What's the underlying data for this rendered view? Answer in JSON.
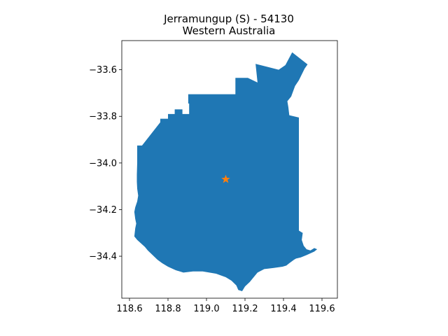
{
  "title": {
    "line1": "Jerramungup (S) - 54130",
    "line2": "Western Australia"
  },
  "colors": {
    "region_fill": "#1f77b4",
    "marker": "#ff7f0e"
  },
  "chart_data": {
    "type": "map",
    "xlim": [
      118.56,
      119.68
    ],
    "ylim": [
      -34.58,
      -33.475
    ],
    "x_ticks": [
      "118.6",
      "118.8",
      "119.0",
      "119.2",
      "119.4",
      "119.6"
    ],
    "x_tick_values": [
      118.6,
      118.8,
      119.0,
      119.2,
      119.4,
      119.6
    ],
    "y_ticks": [
      "−33.6",
      "−33.8",
      "−34.0",
      "−34.2",
      "−34.4"
    ],
    "y_tick_values": [
      -33.6,
      -33.8,
      -34.0,
      -34.2,
      -34.4
    ],
    "centroid_marker": {
      "lon": 119.1,
      "lat": -34.07,
      "symbol": "star"
    },
    "region_outline": [
      [
        118.64,
        -33.925
      ],
      [
        118.665,
        -33.925
      ],
      [
        118.76,
        -33.825
      ],
      [
        118.76,
        -33.81
      ],
      [
        118.8,
        -33.81
      ],
      [
        118.8,
        -33.79
      ],
      [
        118.835,
        -33.79
      ],
      [
        118.835,
        -33.77
      ],
      [
        118.875,
        -33.77
      ],
      [
        118.875,
        -33.79
      ],
      [
        118.91,
        -33.79
      ],
      [
        118.91,
        -33.745
      ],
      [
        118.905,
        -33.745
      ],
      [
        118.905,
        -33.705
      ],
      [
        119.15,
        -33.705
      ],
      [
        119.15,
        -33.635
      ],
      [
        119.215,
        -33.635
      ],
      [
        119.265,
        -33.655
      ],
      [
        119.255,
        -33.575
      ],
      [
        119.375,
        -33.6
      ],
      [
        119.41,
        -33.58
      ],
      [
        119.445,
        -33.525
      ],
      [
        119.525,
        -33.577
      ],
      [
        119.51,
        -33.595
      ],
      [
        119.48,
        -33.645
      ],
      [
        119.46,
        -33.67
      ],
      [
        119.44,
        -33.715
      ],
      [
        119.42,
        -33.735
      ],
      [
        119.425,
        -33.76
      ],
      [
        119.43,
        -33.795
      ],
      [
        119.48,
        -33.805
      ],
      [
        119.48,
        -34.29
      ],
      [
        119.49,
        -34.295
      ],
      [
        119.5,
        -34.3
      ],
      [
        119.495,
        -34.33
      ],
      [
        119.505,
        -34.355
      ],
      [
        119.52,
        -34.37
      ],
      [
        119.54,
        -34.375
      ],
      [
        119.56,
        -34.365
      ],
      [
        119.575,
        -34.37
      ],
      [
        119.56,
        -34.38
      ],
      [
        119.52,
        -34.395
      ],
      [
        119.49,
        -34.405
      ],
      [
        119.465,
        -34.41
      ],
      [
        119.455,
        -34.415
      ],
      [
        119.43,
        -34.43
      ],
      [
        119.415,
        -34.44
      ],
      [
        119.395,
        -34.445
      ],
      [
        119.35,
        -34.45
      ],
      [
        119.3,
        -34.455
      ],
      [
        119.265,
        -34.47
      ],
      [
        119.245,
        -34.49
      ],
      [
        119.225,
        -34.51
      ],
      [
        119.2,
        -34.53
      ],
      [
        119.185,
        -34.55
      ],
      [
        119.165,
        -34.545
      ],
      [
        119.155,
        -34.525
      ],
      [
        119.13,
        -34.505
      ],
      [
        119.1,
        -34.49
      ],
      [
        119.05,
        -34.475
      ],
      [
        118.98,
        -34.465
      ],
      [
        118.93,
        -34.465
      ],
      [
        118.88,
        -34.47
      ],
      [
        118.84,
        -34.46
      ],
      [
        118.8,
        -34.445
      ],
      [
        118.77,
        -34.43
      ],
      [
        118.745,
        -34.415
      ],
      [
        118.72,
        -34.395
      ],
      [
        118.695,
        -34.375
      ],
      [
        118.68,
        -34.36
      ],
      [
        118.66,
        -34.345
      ],
      [
        118.64,
        -34.33
      ],
      [
        118.625,
        -34.315
      ],
      [
        118.63,
        -34.28
      ],
      [
        118.635,
        -34.26
      ],
      [
        118.63,
        -34.24
      ],
      [
        118.625,
        -34.21
      ],
      [
        118.63,
        -34.19
      ],
      [
        118.64,
        -34.165
      ],
      [
        118.645,
        -34.14
      ],
      [
        118.64,
        -34.11
      ],
      [
        118.638,
        -34.08
      ],
      [
        118.638,
        -34.05
      ],
      [
        118.64,
        -34.0
      ],
      [
        118.64,
        -33.945
      ]
    ]
  }
}
